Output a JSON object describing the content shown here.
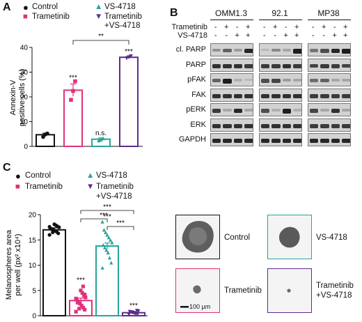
{
  "panels": {
    "A": "A",
    "B": "B",
    "C": "C"
  },
  "colors": {
    "control": "#111111",
    "trametinib": "#e0317a",
    "vs4718": "#26a59a",
    "combo": "#5b2d8c"
  },
  "legend": {
    "control": "Control",
    "trametinib": "Trametinib",
    "vs4718": "VS-4718",
    "combo_line1": "Trametinib",
    "combo_line2": "+VS-4718"
  },
  "chart_data": [
    {
      "type": "bar",
      "panel": "A",
      "categories": [
        "Control",
        "Trametinib",
        "VS-4718",
        "Trametinib +VS-4718"
      ],
      "values": [
        4.7,
        22.7,
        2.9,
        36.0
      ],
      "errors": [
        0.6,
        2.5,
        0.5,
        0.3
      ],
      "points": [
        [
          3.8,
          4.8,
          5.2
        ],
        [
          18.8,
          22.4,
          26.3
        ],
        [
          2.4,
          2.8,
          3.3
        ],
        [
          35.6,
          36.0,
          36.4
        ]
      ],
      "ylabel_line1": "Annexin-V",
      "ylabel_line2": "positive cells (%)",
      "ylim": [
        0,
        40
      ],
      "yticks": [
        "0",
        "10",
        "20",
        "30",
        "40"
      ],
      "annotations": [
        "***",
        "n.s.",
        "***",
        "**"
      ]
    },
    {
      "type": "bar",
      "panel": "C",
      "categories": [
        "Control",
        "Trametinib",
        "VS-4718",
        "Trametinib +VS-4718"
      ],
      "values": [
        17.0,
        3.0,
        13.8,
        0.6
      ],
      "errors": [
        0.4,
        0.5,
        0.6,
        0.1
      ],
      "points": [
        [
          16.0,
          16.3,
          16.6,
          16.8,
          17.0,
          17.1,
          17.3,
          17.5,
          17.7,
          17.9,
          18.1,
          16.5,
          17.2,
          17.6
        ],
        [
          0.8,
          1.2,
          1.6,
          2.0,
          2.4,
          2.8,
          3.2,
          3.6,
          4.0,
          4.5,
          5.0,
          1.4,
          2.6,
          3.4,
          4.2,
          5.8
        ],
        [
          9.5,
          10.5,
          11.5,
          12.5,
          13.0,
          13.5,
          14.0,
          14.5,
          15.0,
          15.5,
          16.0,
          16.5,
          17.0,
          18.6
        ],
        [
          0.2,
          0.3,
          0.4,
          0.5,
          0.6,
          0.7,
          0.8,
          0.9,
          1.0,
          0.5,
          0.6,
          0.7
        ]
      ],
      "ylabel_line1": "Melanospheres area",
      "ylabel_line2": "per well (px² x10⁴)",
      "ylim": [
        0,
        20
      ],
      "yticks": [
        "0",
        "5",
        "10",
        "15",
        "20"
      ],
      "annotations": [
        "***",
        "***",
        "***",
        "***",
        "***",
        "***"
      ]
    }
  ],
  "western": {
    "cell_lines": [
      "OMM1.3",
      "92.1",
      "MP38"
    ],
    "treat_rows": [
      "Trametinib",
      "VS-4718"
    ],
    "trametinib_signs": [
      "-",
      "+",
      "-",
      "+"
    ],
    "vs_signs": [
      "-",
      "-",
      "+",
      "+"
    ],
    "proteins": [
      "cl. PARP",
      "PARP",
      "pFAK",
      "FAK",
      "pERK",
      "ERK",
      "GAPDH"
    ],
    "intensity": [
      [
        [
          0.3,
          0.55,
          0.25,
          0.85
        ],
        [
          0.1,
          0.35,
          0.2,
          0.9
        ],
        [
          0.45,
          0.65,
          0.85,
          0.9
        ]
      ],
      [
        [
          0.8,
          0.8,
          0.8,
          0.75
        ],
        [
          0.75,
          0.75,
          0.8,
          0.75
        ],
        [
          0.7,
          0.75,
          0.75,
          0.7
        ]
      ],
      [
        [
          0.55,
          0.9,
          0.15,
          0.1
        ],
        [
          0.65,
          0.7,
          0.25,
          0.2
        ],
        [
          0.5,
          0.55,
          0.2,
          0.2
        ]
      ],
      [
        [
          0.8,
          0.8,
          0.8,
          0.8
        ],
        [
          0.8,
          0.8,
          0.8,
          0.8
        ],
        [
          0.75,
          0.75,
          0.75,
          0.75
        ]
      ],
      [
        [
          0.75,
          0.2,
          0.85,
          0.2
        ],
        [
          0.65,
          0.15,
          0.9,
          0.15
        ],
        [
          0.7,
          0.2,
          0.8,
          0.2
        ]
      ],
      [
        [
          0.8,
          0.8,
          0.8,
          0.8
        ],
        [
          0.8,
          0.8,
          0.8,
          0.8
        ],
        [
          0.75,
          0.75,
          0.75,
          0.75
        ]
      ],
      [
        [
          0.85,
          0.85,
          0.85,
          0.85
        ],
        [
          0.85,
          0.85,
          0.85,
          0.85
        ],
        [
          0.85,
          0.85,
          0.85,
          0.85
        ]
      ]
    ]
  },
  "images": {
    "labels": [
      "Control",
      "VS-4718",
      "Trametinib",
      "Trametinib",
      "+VS-4718"
    ],
    "scalebar": "100 µm"
  }
}
